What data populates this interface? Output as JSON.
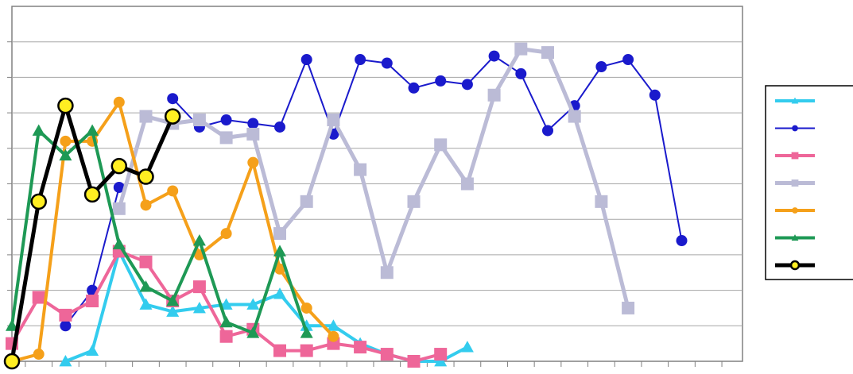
{
  "chart_data": {
    "type": "line",
    "title": "",
    "xlabel": "",
    "ylabel": "",
    "ylim": [
      0,
      10
    ],
    "x_count": 28,
    "gridlines": "horizontal",
    "legend_placement": "right",
    "series": [
      {
        "color": "#33ccee",
        "marker": "triangle",
        "values": [
          null,
          null,
          0.0,
          0.3,
          3.1,
          1.6,
          1.4,
          1.5,
          1.6,
          1.6,
          1.9,
          1.0,
          1.0,
          0.5,
          0.2,
          0.0,
          0.0,
          0.4,
          null,
          null,
          null,
          null,
          null,
          null,
          null,
          null,
          null,
          null
        ]
      },
      {
        "color": "#1a1acc",
        "marker": "circle",
        "values": [
          null,
          null,
          1.0,
          2.0,
          4.9,
          null,
          7.4,
          6.6,
          6.8,
          6.7,
          6.6,
          8.5,
          6.4,
          8.5,
          8.4,
          7.7,
          7.9,
          7.8,
          8.6,
          8.1,
          6.5,
          7.2,
          8.3,
          8.5,
          7.5,
          3.4,
          null,
          null
        ]
      },
      {
        "color": "#ee6699",
        "marker": "square",
        "values": [
          0.5,
          1.8,
          1.3,
          1.7,
          3.1,
          2.8,
          1.7,
          2.1,
          0.7,
          0.9,
          0.3,
          0.3,
          0.5,
          0.4,
          0.2,
          0.0,
          0.2,
          null,
          null,
          null,
          null,
          null,
          null,
          null,
          null,
          null,
          null,
          null
        ]
      },
      {
        "color": "#bbbbd6",
        "marker": "square",
        "values": [
          null,
          null,
          null,
          null,
          4.3,
          6.9,
          6.7,
          6.8,
          6.3,
          6.4,
          3.6,
          4.5,
          6.8,
          5.4,
          2.5,
          4.5,
          6.1,
          5.0,
          7.5,
          8.8,
          8.7,
          6.9,
          4.5,
          1.5,
          null,
          null,
          null,
          null
        ]
      },
      {
        "color": "#f5a01a",
        "marker": "circle",
        "values": [
          0.0,
          0.2,
          6.2,
          6.2,
          7.3,
          4.4,
          4.8,
          3.0,
          3.6,
          5.6,
          2.6,
          1.5,
          0.7,
          null,
          null,
          null,
          null,
          null,
          null,
          null,
          null,
          null,
          null,
          null,
          null,
          null,
          null,
          null
        ]
      },
      {
        "color": "#1e9955",
        "marker": "triangle",
        "values": [
          1.0,
          6.5,
          5.8,
          6.5,
          3.3,
          2.1,
          1.7,
          3.4,
          1.1,
          0.8,
          3.1,
          0.8,
          null,
          null,
          null,
          null,
          null,
          null,
          null,
          null,
          null,
          null,
          null,
          null,
          null,
          null,
          null,
          null
        ]
      },
      {
        "color": "#000000",
        "marker": "circle-yellow",
        "values": [
          0.0,
          4.5,
          7.2,
          4.7,
          5.5,
          5.2,
          6.9,
          null,
          null,
          null,
          null,
          null,
          null,
          null,
          null,
          null,
          null,
          null,
          null,
          null,
          null,
          null,
          null,
          null,
          null,
          null,
          null,
          null
        ]
      }
    ]
  }
}
